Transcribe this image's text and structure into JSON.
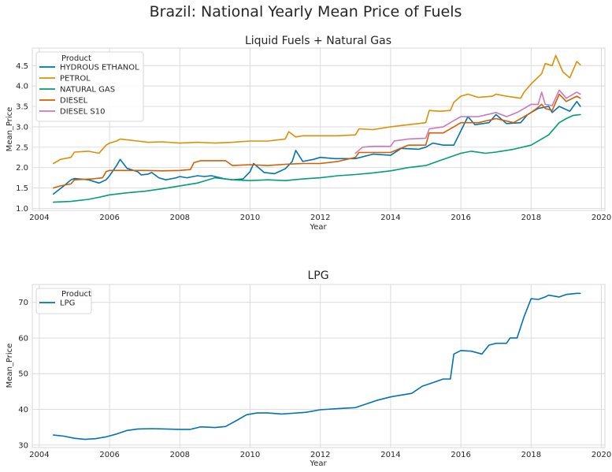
{
  "figure_title": "Brazil: National Yearly Mean Price of Fuels",
  "colors": {
    "HYDROUS ETHANOL": "#0173b2",
    "PETROL": "#de8f05",
    "NATURAL GAS": "#029e73",
    "DIESEL": "#d55e00",
    "DIESEL S10": "#cc78bc",
    "LPG": "#0173b2",
    "grid": "#d9d9d9",
    "background": "#ffffff"
  },
  "chart_data": [
    {
      "type": "line",
      "title": "Liquid Fuels + Natural Gas",
      "xlabel": "Year",
      "ylabel": "Mean_Price",
      "xlim": [
        2003.8,
        2020.1
      ],
      "ylim": [
        0.95,
        4.93
      ],
      "xticks": [
        2004,
        2006,
        2008,
        2010,
        2012,
        2014,
        2016,
        2018,
        2020
      ],
      "yticks": [
        1.0,
        1.5,
        2.0,
        2.5,
        3.0,
        3.5,
        4.0,
        4.5
      ],
      "ytick_labels": [
        "1.0",
        "1.5",
        "2.0",
        "2.5",
        "3.0",
        "3.5",
        "4.0",
        "4.5"
      ],
      "grid": true,
      "legend_title": "Product",
      "legend_position": "upper left",
      "series": [
        {
          "name": "HYDROUS ETHANOL",
          "x": [
            2004.4,
            2004.7,
            2004.9,
            2005.0,
            2005.4,
            2005.7,
            2005.9,
            2006.0,
            2006.2,
            2006.3,
            2006.5,
            2006.8,
            2006.9,
            2007.1,
            2007.2,
            2007.4,
            2007.6,
            2007.9,
            2008.0,
            2008.2,
            2008.5,
            2008.7,
            2008.9,
            2009.3,
            2009.5,
            2009.8,
            2010.0,
            2010.1,
            2010.4,
            2010.7,
            2011.0,
            2011.2,
            2011.3,
            2011.5,
            2011.8,
            2012.0,
            2012.4,
            2013.0,
            2013.5,
            2014.0,
            2014.3,
            2014.8,
            2015.0,
            2015.2,
            2015.5,
            2015.8,
            2016.0,
            2016.2,
            2016.4,
            2016.8,
            2017.0,
            2017.3,
            2017.7,
            2017.9,
            2018.0,
            2018.2,
            2018.5,
            2018.6,
            2018.8,
            2019.1,
            2019.3,
            2019.4
          ],
          "y": [
            1.35,
            1.55,
            1.7,
            1.73,
            1.7,
            1.62,
            1.7,
            1.8,
            2.05,
            2.2,
            1.98,
            1.9,
            1.82,
            1.84,
            1.88,
            1.75,
            1.7,
            1.75,
            1.78,
            1.75,
            1.8,
            1.78,
            1.8,
            1.72,
            1.7,
            1.72,
            1.9,
            2.1,
            1.88,
            1.85,
            1.97,
            2.15,
            2.42,
            2.15,
            2.2,
            2.25,
            2.22,
            2.22,
            2.33,
            2.3,
            2.47,
            2.45,
            2.5,
            2.6,
            2.55,
            2.55,
            2.9,
            3.25,
            3.05,
            3.1,
            3.3,
            3.08,
            3.1,
            3.3,
            3.35,
            3.45,
            3.5,
            3.35,
            3.5,
            3.38,
            3.62,
            3.5
          ]
        },
        {
          "name": "PETROL",
          "x": [
            2004.4,
            2004.6,
            2004.9,
            2005.0,
            2005.4,
            2005.7,
            2005.9,
            2006.0,
            2006.2,
            2006.3,
            2006.8,
            2007.1,
            2007.5,
            2008.0,
            2008.5,
            2009.0,
            2009.5,
            2010.0,
            2010.5,
            2011.0,
            2011.1,
            2011.3,
            2011.5,
            2012.0,
            2012.5,
            2013.0,
            2013.1,
            2013.5,
            2014.0,
            2014.5,
            2015.0,
            2015.1,
            2015.4,
            2015.7,
            2015.8,
            2016.0,
            2016.2,
            2016.5,
            2016.9,
            2017.0,
            2017.3,
            2017.7,
            2017.8,
            2018.0,
            2018.3,
            2018.4,
            2018.6,
            2018.7,
            2018.9,
            2019.1,
            2019.3,
            2019.4
          ],
          "y": [
            2.1,
            2.2,
            2.25,
            2.38,
            2.4,
            2.35,
            2.55,
            2.6,
            2.65,
            2.7,
            2.65,
            2.62,
            2.63,
            2.6,
            2.62,
            2.6,
            2.62,
            2.65,
            2.65,
            2.7,
            2.88,
            2.75,
            2.78,
            2.78,
            2.78,
            2.8,
            2.95,
            2.93,
            3.0,
            3.05,
            3.1,
            3.4,
            3.38,
            3.4,
            3.6,
            3.75,
            3.8,
            3.72,
            3.75,
            3.8,
            3.75,
            3.7,
            3.85,
            4.05,
            4.3,
            4.55,
            4.5,
            4.75,
            4.35,
            4.2,
            4.6,
            4.52
          ]
        },
        {
          "name": "NATURAL GAS",
          "x": [
            2004.4,
            2004.9,
            2005.4,
            2005.7,
            2006.0,
            2006.5,
            2007.0,
            2007.5,
            2008.0,
            2008.5,
            2009.0,
            2009.5,
            2010.0,
            2010.5,
            2011.0,
            2011.5,
            2012.0,
            2012.5,
            2013.0,
            2013.5,
            2014.0,
            2014.5,
            2015.0,
            2015.5,
            2016.0,
            2016.3,
            2016.7,
            2017.0,
            2017.5,
            2018.0,
            2018.5,
            2018.8,
            2019.0,
            2019.2,
            2019.4
          ],
          "y": [
            1.15,
            1.17,
            1.22,
            1.27,
            1.33,
            1.38,
            1.42,
            1.48,
            1.55,
            1.62,
            1.75,
            1.7,
            1.68,
            1.7,
            1.68,
            1.72,
            1.75,
            1.8,
            1.83,
            1.87,
            1.92,
            2.0,
            2.05,
            2.2,
            2.35,
            2.4,
            2.35,
            2.38,
            2.45,
            2.55,
            2.8,
            3.1,
            3.2,
            3.28,
            3.3
          ]
        },
        {
          "name": "DIESEL",
          "x": [
            2004.4,
            2004.6,
            2004.9,
            2005.0,
            2005.5,
            2005.8,
            2005.9,
            2006.0,
            2006.5,
            2007.0,
            2007.5,
            2008.0,
            2008.3,
            2008.4,
            2008.6,
            2009.0,
            2009.3,
            2009.5,
            2010.0,
            2010.5,
            2011.0,
            2011.5,
            2012.0,
            2012.5,
            2013.0,
            2013.1,
            2013.5,
            2014.0,
            2014.5,
            2015.0,
            2015.1,
            2015.5,
            2015.8,
            2016.0,
            2016.5,
            2017.0,
            2017.5,
            2017.9,
            2018.0,
            2018.2,
            2018.3,
            2018.4,
            2018.6,
            2018.8,
            2019.0,
            2019.3,
            2019.4
          ],
          "y": [
            1.5,
            1.55,
            1.6,
            1.7,
            1.72,
            1.75,
            1.9,
            1.93,
            1.93,
            1.93,
            1.92,
            1.93,
            1.95,
            2.12,
            2.17,
            2.17,
            2.17,
            2.05,
            2.07,
            2.05,
            2.08,
            2.1,
            2.1,
            2.15,
            2.25,
            2.37,
            2.37,
            2.37,
            2.55,
            2.55,
            2.85,
            2.85,
            3.0,
            3.1,
            3.1,
            3.2,
            3.1,
            3.3,
            3.35,
            3.48,
            3.55,
            3.45,
            3.4,
            3.8,
            3.62,
            3.75,
            3.7
          ]
        },
        {
          "name": "DIESEL S10",
          "x": [
            2013.0,
            2013.2,
            2013.5,
            2014.0,
            2014.1,
            2014.5,
            2015.0,
            2015.1,
            2015.5,
            2015.8,
            2016.0,
            2016.5,
            2017.0,
            2017.3,
            2017.6,
            2018.0,
            2018.2,
            2018.3,
            2018.4,
            2018.6,
            2018.8,
            2019.0,
            2019.3,
            2019.4
          ],
          "y": [
            2.35,
            2.5,
            2.52,
            2.52,
            2.65,
            2.7,
            2.72,
            2.95,
            3.0,
            3.15,
            3.25,
            3.25,
            3.35,
            3.25,
            3.35,
            3.55,
            3.55,
            3.85,
            3.55,
            3.52,
            3.9,
            3.7,
            3.85,
            3.8
          ]
        }
      ]
    },
    {
      "type": "line",
      "title": "LPG",
      "xlabel": "Year",
      "ylabel": "Mean_Price",
      "xlim": [
        2003.8,
        2020.1
      ],
      "ylim": [
        29.3,
        75.0
      ],
      "xticks": [
        2004,
        2006,
        2008,
        2010,
        2012,
        2014,
        2016,
        2018,
        2020
      ],
      "yticks": [
        30,
        40,
        50,
        60,
        70
      ],
      "ytick_labels": [
        "30",
        "40",
        "50",
        "60",
        "70"
      ],
      "grid": true,
      "legend_title": "Product",
      "legend_position": "upper left",
      "series": [
        {
          "name": "LPG",
          "x": [
            2004.4,
            2004.7,
            2005.0,
            2005.3,
            2005.6,
            2005.9,
            2006.2,
            2006.5,
            2006.8,
            2007.2,
            2007.6,
            2008.0,
            2008.3,
            2008.6,
            2009.0,
            2009.3,
            2009.6,
            2009.9,
            2010.2,
            2010.5,
            2010.9,
            2011.2,
            2011.6,
            2012.0,
            2012.5,
            2013.0,
            2013.3,
            2013.6,
            2014.0,
            2014.3,
            2014.6,
            2014.9,
            2015.2,
            2015.5,
            2015.7,
            2015.8,
            2016.0,
            2016.3,
            2016.6,
            2016.8,
            2017.0,
            2017.3,
            2017.4,
            2017.6,
            2017.8,
            2018.0,
            2018.2,
            2018.4,
            2018.5,
            2018.8,
            2019.0,
            2019.3,
            2019.4
          ],
          "y": [
            32.8,
            32.5,
            31.9,
            31.6,
            31.8,
            32.3,
            33.1,
            34.1,
            34.5,
            34.6,
            34.5,
            34.4,
            34.4,
            35.1,
            34.9,
            35.2,
            36.8,
            38.5,
            39.0,
            39.0,
            38.7,
            38.9,
            39.2,
            39.9,
            40.2,
            40.5,
            41.5,
            42.5,
            43.5,
            44.0,
            44.5,
            46.5,
            47.5,
            48.5,
            48.5,
            55.5,
            56.5,
            56.3,
            55.5,
            58.0,
            58.5,
            58.5,
            60.0,
            60.0,
            66.0,
            71.0,
            70.8,
            71.5,
            72.0,
            71.5,
            72.2,
            72.5,
            72.5
          ]
        }
      ]
    }
  ]
}
